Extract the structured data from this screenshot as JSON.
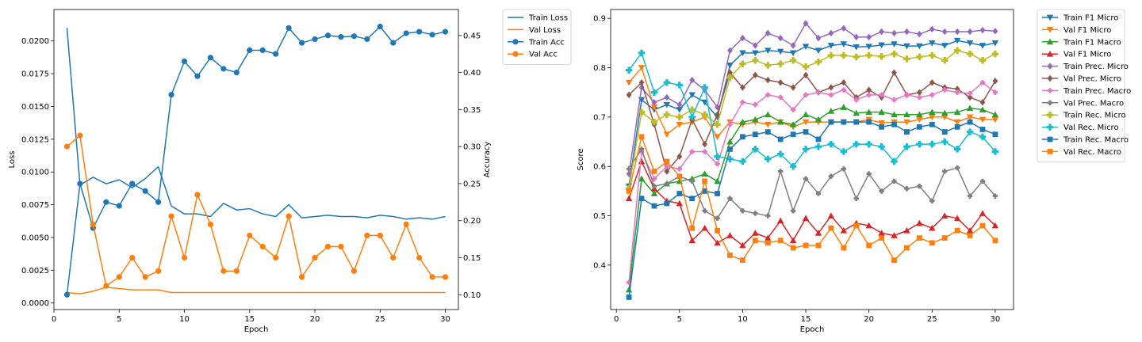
{
  "chart_data": [
    {
      "type": "line",
      "xlabel": "Epoch",
      "ylabel": "Loss",
      "y2label": "Accuracy",
      "xlim": [
        0,
        31
      ],
      "ylim": [
        -0.0005,
        0.0224
      ],
      "y2lim": [
        0.08,
        0.485
      ],
      "xticks": [
        0,
        5,
        10,
        15,
        20,
        25,
        30
      ],
      "yticks": [
        0.0,
        0.0025,
        0.005,
        0.0075,
        0.01,
        0.0125,
        0.015,
        0.0175,
        0.02
      ],
      "ytick_labels": [
        "0.0000",
        "0.0025",
        "0.0050",
        "0.0075",
        "0.0100",
        "0.0125",
        "0.0150",
        "0.0175",
        "0.0200"
      ],
      "y2ticks": [
        0.1,
        0.15,
        0.2,
        0.25,
        0.3,
        0.35,
        0.4,
        0.45
      ],
      "y2tick_labels": [
        "0.10",
        "0.15",
        "0.20",
        "0.25",
        "0.30",
        "0.35",
        "0.40",
        "0.45"
      ],
      "grid": false,
      "legend_placement": "outside-right",
      "x": [
        1,
        2,
        3,
        4,
        5,
        6,
        7,
        8,
        9,
        10,
        11,
        12,
        13,
        14,
        15,
        16,
        17,
        18,
        19,
        20,
        21,
        22,
        23,
        24,
        25,
        26,
        27,
        28,
        29,
        30
      ],
      "series": [
        {
          "name": "Train Loss",
          "axis": "left",
          "color": "#1f77b4",
          "marker": "none",
          "values": [
            0.021,
            0.009,
            0.0096,
            0.0091,
            0.0094,
            0.0088,
            0.0095,
            0.0104,
            0.0074,
            0.0068,
            0.0068,
            0.0066,
            0.0076,
            0.0071,
            0.0072,
            0.0068,
            0.0066,
            0.0075,
            0.0065,
            0.0066,
            0.0067,
            0.0066,
            0.0066,
            0.0065,
            0.0067,
            0.0066,
            0.0064,
            0.0065,
            0.0064,
            0.0066
          ]
        },
        {
          "name": "Val Loss",
          "axis": "left",
          "color": "#ff7f0e",
          "marker": "none",
          "values": [
            0.0008,
            0.0007,
            0.0009,
            0.0012,
            0.0011,
            0.001,
            0.001,
            0.001,
            0.0008,
            0.0008,
            0.0008,
            0.0008,
            0.0008,
            0.0008,
            0.0008,
            0.0008,
            0.0008,
            0.0008,
            0.0008,
            0.0008,
            0.0008,
            0.0008,
            0.0008,
            0.0008,
            0.0008,
            0.0008,
            0.0008,
            0.0008,
            0.0008,
            0.0008
          ]
        },
        {
          "name": "Train Acc",
          "axis": "right",
          "color": "#1f77b4",
          "marker": "o",
          "values": [
            0.1,
            0.25,
            0.19,
            0.225,
            0.22,
            0.25,
            0.24,
            0.225,
            0.37,
            0.415,
            0.395,
            0.42,
            0.405,
            0.4,
            0.43,
            0.43,
            0.425,
            0.46,
            0.44,
            0.445,
            0.45,
            0.448,
            0.449,
            0.445,
            0.462,
            0.44,
            0.453,
            0.455,
            0.451,
            0.455
          ]
        },
        {
          "name": "Val Acc",
          "axis": "right",
          "color": "#ff7f0e",
          "marker": "o",
          "values": [
            0.3,
            0.315,
            0.195,
            0.112,
            0.124,
            0.15,
            0.124,
            0.132,
            0.206,
            0.15,
            0.235,
            0.195,
            0.132,
            0.132,
            0.18,
            0.165,
            0.15,
            0.206,
            0.124,
            0.15,
            0.165,
            0.165,
            0.132,
            0.18,
            0.18,
            0.15,
            0.195,
            0.15,
            0.124,
            0.124
          ]
        }
      ]
    },
    {
      "type": "line",
      "xlabel": "Epoch",
      "ylabel": "Score",
      "xlim": [
        -0.45,
        31.45
      ],
      "ylim": [
        0.31,
        0.918
      ],
      "xticks": [
        0,
        5,
        10,
        15,
        20,
        25,
        30
      ],
      "yticks": [
        0.4,
        0.5,
        0.6,
        0.7,
        0.8,
        0.9
      ],
      "ytick_labels": [
        "0.4",
        "0.5",
        "0.6",
        "0.7",
        "0.8",
        "0.9"
      ],
      "grid": false,
      "legend_placement": "outside-right",
      "x": [
        1,
        2,
        3,
        4,
        5,
        6,
        7,
        8,
        9,
        10,
        11,
        12,
        13,
        14,
        15,
        16,
        17,
        18,
        19,
        20,
        21,
        22,
        23,
        24,
        25,
        26,
        27,
        28,
        29,
        30
      ],
      "series": [
        {
          "name": "Train F1 Micro",
          "color": "#1f77b4",
          "marker": "v",
          "values": [
            0.56,
            0.735,
            0.715,
            0.725,
            0.715,
            0.745,
            0.73,
            0.7,
            0.805,
            0.83,
            0.83,
            0.835,
            0.833,
            0.83,
            0.843,
            0.835,
            0.845,
            0.848,
            0.842,
            0.843,
            0.846,
            0.848,
            0.844,
            0.844,
            0.85,
            0.845,
            0.855,
            0.85,
            0.845,
            0.85
          ]
        },
        {
          "name": "Val F1 Micro",
          "color": "#ff7f0e",
          "marker": "v",
          "values": [
            0.77,
            0.8,
            0.72,
            0.665,
            0.685,
            0.69,
            0.7,
            0.66,
            0.69,
            0.685,
            0.69,
            0.685,
            0.69,
            0.68,
            0.69,
            0.69,
            0.69,
            0.69,
            0.69,
            0.695,
            0.688,
            0.69,
            0.69,
            0.695,
            0.7,
            0.7,
            0.69,
            0.7,
            0.695,
            0.695
          ]
        },
        {
          "name": "Train F1 Macro",
          "color": "#2ca02c",
          "marker": "^",
          "values": [
            0.35,
            0.575,
            0.545,
            0.565,
            0.57,
            0.575,
            0.585,
            0.57,
            0.65,
            0.69,
            0.695,
            0.705,
            0.69,
            0.685,
            0.705,
            0.695,
            0.712,
            0.72,
            0.708,
            0.71,
            0.71,
            0.705,
            0.705,
            0.705,
            0.71,
            0.708,
            0.71,
            0.718,
            0.715,
            0.705
          ]
        },
        {
          "name": "Val F1 Micro",
          "color": "#d62728",
          "marker": "^",
          "values": [
            0.535,
            0.61,
            0.555,
            0.53,
            0.525,
            0.45,
            0.475,
            0.445,
            0.46,
            0.44,
            0.465,
            0.455,
            0.49,
            0.45,
            0.495,
            0.465,
            0.5,
            0.47,
            0.485,
            0.48,
            0.465,
            0.46,
            0.47,
            0.485,
            0.475,
            0.5,
            0.495,
            0.47,
            0.505,
            0.48
          ]
        },
        {
          "name": "Train Prec. Micro",
          "color": "#9467bd",
          "marker": "D",
          "values": [
            0.585,
            0.76,
            0.73,
            0.74,
            0.725,
            0.775,
            0.755,
            0.72,
            0.835,
            0.86,
            0.845,
            0.87,
            0.86,
            0.845,
            0.89,
            0.86,
            0.87,
            0.88,
            0.862,
            0.862,
            0.873,
            0.87,
            0.873,
            0.868,
            0.878,
            0.873,
            0.873,
            0.873,
            0.876,
            0.874
          ]
        },
        {
          "name": "Val Prec. Micro",
          "color": "#8c564b",
          "marker": "D",
          "values": [
            0.745,
            0.77,
            0.685,
            0.59,
            0.62,
            0.695,
            0.645,
            0.705,
            0.79,
            0.76,
            0.785,
            0.775,
            0.77,
            0.76,
            0.785,
            0.75,
            0.76,
            0.77,
            0.74,
            0.755,
            0.74,
            0.79,
            0.745,
            0.75,
            0.77,
            0.76,
            0.757,
            0.74,
            0.73,
            0.773
          ]
        },
        {
          "name": "Train Prec. Macro",
          "color": "#e377c2",
          "marker": "X",
          "values": [
            0.365,
            0.63,
            0.575,
            0.6,
            0.595,
            0.63,
            0.63,
            0.605,
            0.685,
            0.73,
            0.725,
            0.745,
            0.74,
            0.715,
            0.745,
            0.75,
            0.745,
            0.755,
            0.735,
            0.745,
            0.745,
            0.735,
            0.745,
            0.74,
            0.745,
            0.755,
            0.75,
            0.748,
            0.77,
            0.75
          ]
        },
        {
          "name": "Val Prec. Macro",
          "color": "#7f7f7f",
          "marker": "X",
          "values": [
            0.595,
            0.635,
            0.56,
            0.565,
            0.58,
            0.57,
            0.51,
            0.495,
            0.535,
            0.51,
            0.505,
            0.5,
            0.59,
            0.51,
            0.575,
            0.545,
            0.58,
            0.595,
            0.535,
            0.585,
            0.55,
            0.57,
            0.555,
            0.56,
            0.53,
            0.59,
            0.597,
            0.54,
            0.57,
            0.54
          ]
        },
        {
          "name": "Train Rec. Micro",
          "color": "#bcbd22",
          "marker": "P",
          "values": [
            0.555,
            0.71,
            0.69,
            0.705,
            0.7,
            0.715,
            0.705,
            0.685,
            0.78,
            0.808,
            0.815,
            0.805,
            0.808,
            0.815,
            0.802,
            0.812,
            0.825,
            0.825,
            0.822,
            0.825,
            0.823,
            0.828,
            0.818,
            0.822,
            0.825,
            0.815,
            0.835,
            0.828,
            0.815,
            0.828
          ]
        },
        {
          "name": "Val Rec. Micro",
          "color": "#17becf",
          "marker": "P",
          "values": [
            0.795,
            0.83,
            0.75,
            0.77,
            0.765,
            0.7,
            0.76,
            0.62,
            0.615,
            0.61,
            0.635,
            0.615,
            0.625,
            0.6,
            0.635,
            0.64,
            0.645,
            0.63,
            0.645,
            0.645,
            0.64,
            0.61,
            0.64,
            0.645,
            0.645,
            0.65,
            0.635,
            0.67,
            0.66,
            0.63
          ]
        },
        {
          "name": "Train Rec. Macro",
          "color": "#1f77b4",
          "marker": "s",
          "values": [
            0.335,
            0.535,
            0.52,
            0.525,
            0.545,
            0.535,
            0.55,
            0.545,
            0.635,
            0.66,
            0.665,
            0.67,
            0.655,
            0.665,
            0.67,
            0.655,
            0.69,
            0.69,
            0.69,
            0.69,
            0.68,
            0.685,
            0.67,
            0.68,
            0.685,
            0.67,
            0.68,
            0.69,
            0.675,
            0.665
          ]
        },
        {
          "name": "Val Rec. Macro",
          "color": "#ff7f0e",
          "marker": "s",
          "values": [
            0.55,
            0.66,
            0.59,
            0.61,
            0.58,
            0.475,
            0.57,
            0.47,
            0.42,
            0.41,
            0.45,
            0.445,
            0.45,
            0.435,
            0.44,
            0.44,
            0.475,
            0.435,
            0.48,
            0.44,
            0.455,
            0.41,
            0.435,
            0.455,
            0.445,
            0.455,
            0.47,
            0.46,
            0.48,
            0.45
          ]
        }
      ]
    }
  ]
}
